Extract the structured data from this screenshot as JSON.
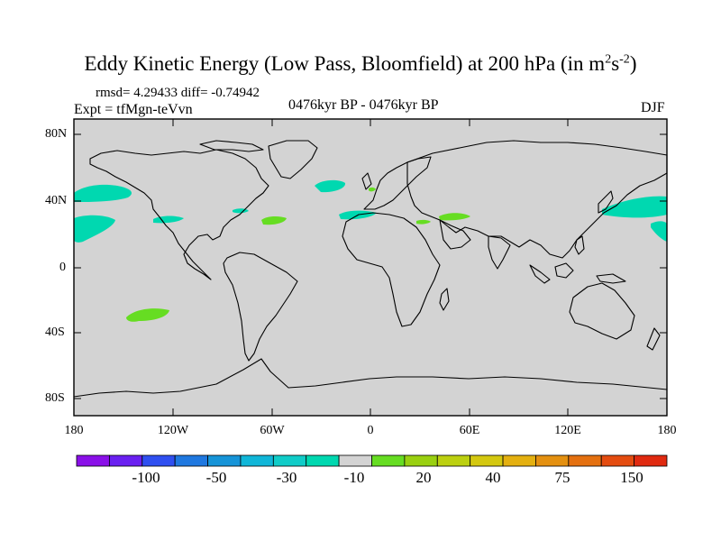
{
  "title": {
    "main": "Eddy Kinetic Energy (Low Pass, Bloomfield) at 200 hPa (in m",
    "sup1": "2",
    "mid": "s",
    "sup2": "-2",
    "close": ")"
  },
  "stats": "rmsd= 4.29433 diff= -0.74942",
  "experiment": "Expt = tfMgn-teVvn",
  "period": "0476kyr BP - 0476kyr BP",
  "season": "DJF",
  "map": {
    "projection": "cylindrical-equidistant",
    "background_color": "#d3d3d3",
    "lat_labels": [
      "80N",
      "40N",
      "0",
      "40S",
      "80S"
    ],
    "lon_labels": [
      "180",
      "120W",
      "60W",
      "0",
      "60E",
      "120E",
      "180"
    ],
    "anomaly_regions": [
      {
        "region": "North Pacific (Gulf of Alaska)",
        "level": "-10 to -30",
        "color": "#00d8b0"
      },
      {
        "region": "Central North Pacific",
        "level": "-10 to -30",
        "color": "#00d8b0"
      },
      {
        "region": "Western North Pacific",
        "level": "-10 to -30",
        "color": "#00d8b0"
      },
      {
        "region": "Western North Atlantic",
        "level": "-10 to -30",
        "color": "#00d8b0"
      },
      {
        "region": "Eastern North Atlantic",
        "level": "-10 to -30",
        "color": "#00d8b0"
      },
      {
        "region": "Central North Atlantic",
        "level": "10 to 20",
        "color": "#66dd22"
      },
      {
        "region": "Middle East",
        "level": "10 to 20",
        "color": "#66dd22"
      },
      {
        "region": "South Pacific",
        "level": "10 to 20",
        "color": "#66dd22"
      }
    ]
  },
  "colorbar": {
    "colors": [
      "#8a10e8",
      "#6a20f0",
      "#2f4ff0",
      "#1f78e0",
      "#1694d8",
      "#10b6d8",
      "#10ccc8",
      "#00d8b0",
      "#d3d3d3",
      "#66dd22",
      "#99d010",
      "#bcd010",
      "#d4c810",
      "#e4b010",
      "#e49010",
      "#e47010",
      "#e44c10",
      "#e02a10"
    ],
    "labels": [
      "-100",
      "-50",
      "-30",
      "-10",
      "20",
      "40",
      "75",
      "150"
    ]
  }
}
